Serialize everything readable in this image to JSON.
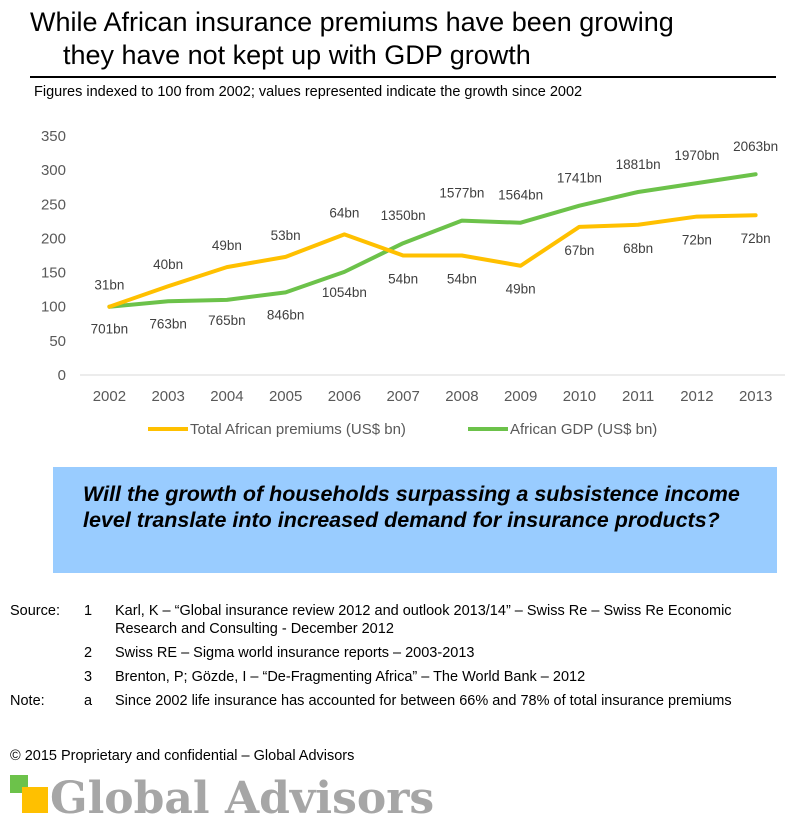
{
  "header": {
    "title_line1": "While African insurance premiums have been growing",
    "title_line2": "they have not kept up with GDP growth",
    "subtitle": "Figures indexed to 100 from 2002; values represented indicate the growth since 2002"
  },
  "chart_data": {
    "type": "line",
    "x": [
      "2002",
      "2003",
      "2004",
      "2005",
      "2006",
      "2007",
      "2008",
      "2009",
      "2010",
      "2011",
      "2012",
      "2013"
    ],
    "ylim": [
      0,
      350
    ],
    "yticks": [
      "0",
      "50",
      "100",
      "150",
      "200",
      "250",
      "300",
      "350"
    ],
    "grid": false,
    "legend_position": "bottom",
    "series": [
      {
        "name": "Total African premiums (US$ bn)",
        "color": "#FFC000",
        "values": [
          100,
          130,
          158,
          173,
          206,
          175,
          175,
          160,
          217,
          220,
          232,
          234
        ],
        "labels": [
          "31bn",
          "40bn",
          "49bn",
          "53bn",
          "64bn",
          "54bn",
          "54bn",
          "49bn",
          "67bn",
          "68bn",
          "72bn",
          "72bn"
        ]
      },
      {
        "name": "African GDP (US$ bn)",
        "color": "#6CC24A",
        "values": [
          100,
          108,
          110,
          121,
          151,
          193,
          226,
          223,
          248,
          268,
          281,
          294
        ],
        "labels": [
          "701bn",
          "763bn",
          "765bn",
          "846bn",
          "1054bn",
          "1350bn",
          "1577bn",
          "1564bn",
          "1741bn",
          "1881bn",
          "1970bn",
          "2063bn"
        ]
      }
    ]
  },
  "callout": {
    "text": "Will the growth of households surpassing a subsistence income level translate into increased demand for insurance products?",
    "background": "#99CCFF"
  },
  "notes": [
    {
      "label": "Source:",
      "num": "1",
      "text": "Karl, K – “Global insurance review 2012 and outlook 2013/14” – Swiss Re – Swiss Re Economic Research and Consulting - December 2012"
    },
    {
      "label": "",
      "num": "2",
      "text": "Swiss RE – Sigma world insurance reports – 2003-2013"
    },
    {
      "label": "",
      "num": "3",
      "text": "Brenton, P; Gözde, I – “De-Fragmenting Africa” – The World Bank – 2012"
    },
    {
      "label": "Note:",
      "num": "a",
      "text": "Since 2002 life insurance has accounted for between 66% and 78% of total insurance premiums"
    }
  ],
  "footer": {
    "copyright": "© 2015 Proprietary and confidential – Global Advisors",
    "logo_text": "Global Advisors",
    "logo_colors": {
      "green": "#6CC24A",
      "yellow": "#FFC000"
    }
  }
}
